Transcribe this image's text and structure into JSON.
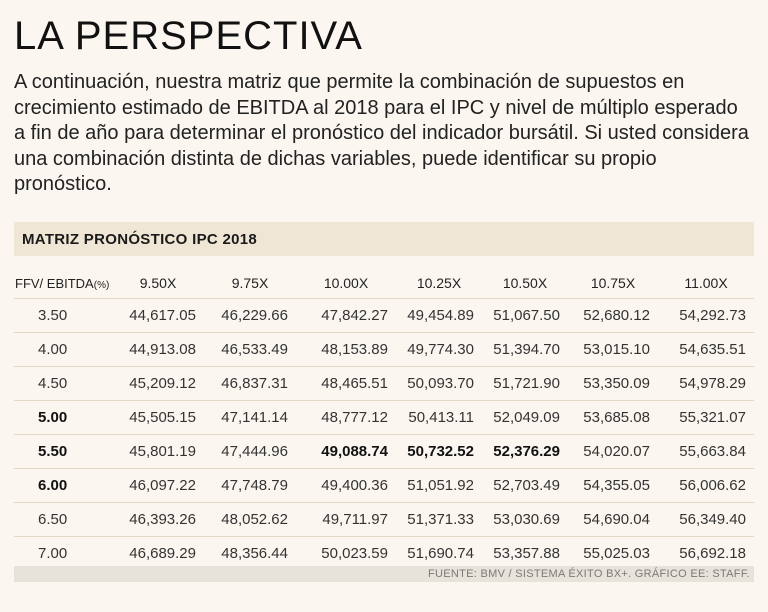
{
  "title": "LA PERSPECTIVA",
  "intro": "A continuación, nuestra matriz que permite la combinación de supuestos en crecimiento estimado de EBITDA al 2018 para el IPC y nivel de múltiplo esperado a fin de año para determinar el pronóstico del indicador bursátil. Si usted considera una combinación distinta de dichas variables, puede identificar su propio pronóstico.",
  "matrix": {
    "header": "MATRIZ  PRONÓSTICO IPC 2018",
    "corner_label": "FFV/ EBITDA",
    "corner_unit": "(%)",
    "columns": [
      "9.50X",
      "9.75X",
      "10.00X",
      "10.25X",
      "10.50X",
      "10.75X",
      "11.00X"
    ],
    "rows": [
      {
        "ffv": "3.50",
        "values": [
          "44,617.05",
          "46,229.66",
          "47,842.27",
          "49,454.89",
          "51,067.50",
          "52,680.12",
          "54,292.73"
        ]
      },
      {
        "ffv": "4.00",
        "values": [
          "44,913.08",
          "46,533.49",
          "48,153.89",
          "49,774.30",
          "51,394.70",
          "53,015.10",
          "54,635.51"
        ]
      },
      {
        "ffv": "4.50",
        "values": [
          "45,209.12",
          "46,837.31",
          "48,465.51",
          "50,093.70",
          "51,721.90",
          "53,350.09",
          "54,978.29"
        ]
      },
      {
        "ffv": "5.00",
        "values": [
          "45,505.15",
          "47,141.14",
          "48,777.12",
          "50,413.11",
          "52,049.09",
          "53,685.08",
          "55,321.07"
        ]
      },
      {
        "ffv": "5.50",
        "values": [
          "45,801.19",
          "47,444.96",
          "49,088.74",
          "50,732.52",
          "52,376.29",
          "54,020.07",
          "55,663.84"
        ]
      },
      {
        "ffv": "6.00",
        "values": [
          "46,097.22",
          "47,748.79",
          "49,400.36",
          "51,051.92",
          "52,703.49",
          "54,355.05",
          "56,006.62"
        ]
      },
      {
        "ffv": "6.50",
        "values": [
          "46,393.26",
          "48,052.62",
          "49,711.97",
          "51,371.33",
          "53,030.69",
          "54,690.04",
          "56,349.40"
        ]
      },
      {
        "ffv": "7.00",
        "values": [
          "46,689.29",
          "48,356.44",
          "50,023.59",
          "51,690.74",
          "53,357.88",
          "55,025.03",
          "56,692.18"
        ]
      }
    ]
  },
  "footer": "FUENTE: BMV / SISTEMA ÉXITO BX+. GRÁFICO EE: STAFF."
}
